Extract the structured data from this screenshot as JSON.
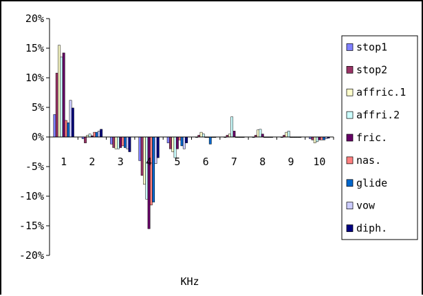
{
  "chart_data": {
    "type": "bar",
    "xlabel": "KHz",
    "ylabel": "",
    "categories": [
      "1",
      "2",
      "3",
      "4",
      "5",
      "6",
      "7",
      "8",
      "9",
      "10"
    ],
    "yticks": [
      "20%",
      "15%",
      "10%",
      "5%",
      "0%",
      "-5%",
      "-10%",
      "-15%",
      "-20%"
    ],
    "ylim": [
      -20,
      20
    ],
    "legend_position": "right",
    "series": [
      {
        "name": "stop1",
        "color": "#8080ff",
        "values": [
          3.8,
          -0.3,
          -1.2,
          -4.0,
          -1.0,
          0.0,
          0.0,
          0.0,
          0.0,
          -0.3
        ]
      },
      {
        "name": "stop2",
        "color": "#993366",
        "values": [
          10.8,
          -1.0,
          -1.8,
          -6.5,
          -2.0,
          0.3,
          0.3,
          0.3,
          0.3,
          -0.5
        ]
      },
      {
        "name": "affric.1",
        "color": "#ffffcc",
        "values": [
          15.5,
          0.3,
          -2.0,
          -8.0,
          -2.5,
          0.8,
          0.5,
          1.2,
          0.8,
          -1.0
        ]
      },
      {
        "name": "affri.2",
        "color": "#ccffff",
        "values": [
          13.5,
          0.5,
          -2.0,
          -10.5,
          -3.5,
          0.5,
          3.4,
          1.3,
          1.0,
          -0.8
        ]
      },
      {
        "name": "fric.",
        "color": "#660066",
        "values": [
          14.2,
          0.2,
          -1.8,
          -15.5,
          -2.0,
          0.0,
          1.0,
          0.5,
          0.0,
          -0.5
        ]
      },
      {
        "name": "nas.",
        "color": "#ff8080",
        "values": [
          2.8,
          0.8,
          -1.5,
          -11.5,
          -0.5,
          0.0,
          0.0,
          0.0,
          0.0,
          -0.5
        ]
      },
      {
        "name": "glide",
        "color": "#0066cc",
        "values": [
          2.4,
          0.8,
          -1.8,
          -11.0,
          -1.5,
          -1.2,
          0.0,
          0.0,
          0.0,
          -0.5
        ]
      },
      {
        "name": "vow",
        "color": "#ccccff",
        "values": [
          6.2,
          1.0,
          -2.0,
          -4.5,
          -2.0,
          0.0,
          0.0,
          0.0,
          0.0,
          -0.3
        ]
      },
      {
        "name": "diph.",
        "color": "#000080",
        "values": [
          4.9,
          1.3,
          -2.5,
          -3.5,
          -1.0,
          0.0,
          0.0,
          0.0,
          0.0,
          -0.2
        ]
      }
    ]
  }
}
